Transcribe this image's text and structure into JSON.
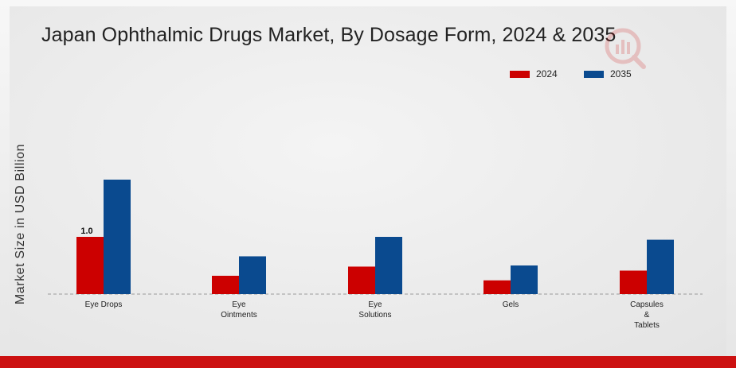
{
  "colors": {
    "series_2024": "#cc0000",
    "series_2035": "#0a4a8f",
    "accent_bar": "#cc1111"
  },
  "chart_data": {
    "type": "bar",
    "title": "Japan Ophthalmic Drugs Market, By Dosage Form, 2024 & 2035",
    "xlabel": "",
    "ylabel": "Market Size in USD Billion",
    "categories": [
      [
        "Eye Drops"
      ],
      [
        "Eye",
        "Ointments"
      ],
      [
        "Eye",
        "Solutions"
      ],
      [
        "Gels"
      ],
      [
        "Capsules",
        "&",
        "Tablets"
      ]
    ],
    "series": [
      {
        "name": "2024",
        "values": [
          1.0,
          0.32,
          0.48,
          0.24,
          0.41
        ]
      },
      {
        "name": "2035",
        "values": [
          2.0,
          0.66,
          1.0,
          0.5,
          0.95
        ]
      }
    ],
    "data_labels": [
      {
        "series": 0,
        "index": 0,
        "text": "1.0"
      }
    ],
    "ylim": [
      0,
      2.35
    ],
    "grid": false,
    "legend_position": "top-right"
  },
  "icons": {
    "watermark": "brand-logo-icon"
  }
}
